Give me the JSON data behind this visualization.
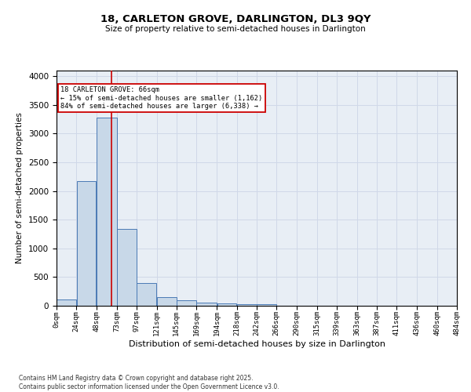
{
  "title_line1": "18, CARLETON GROVE, DARLINGTON, DL3 9QY",
  "title_line2": "Size of property relative to semi-detached houses in Darlington",
  "xlabel": "Distribution of semi-detached houses by size in Darlington",
  "ylabel": "Number of semi-detached properties",
  "bin_labels": [
    "0sqm",
    "24sqm",
    "48sqm",
    "73sqm",
    "97sqm",
    "121sqm",
    "145sqm",
    "169sqm",
    "194sqm",
    "218sqm",
    "242sqm",
    "266sqm",
    "290sqm",
    "315sqm",
    "339sqm",
    "363sqm",
    "387sqm",
    "411sqm",
    "436sqm",
    "460sqm",
    "484sqm"
  ],
  "bin_edges": [
    0,
    24,
    48,
    73,
    97,
    121,
    145,
    169,
    194,
    218,
    242,
    266,
    290,
    315,
    339,
    363,
    387,
    411,
    436,
    460,
    484
  ],
  "bar_heights": [
    110,
    2175,
    3280,
    1340,
    400,
    155,
    90,
    50,
    45,
    30,
    25,
    0,
    0,
    0,
    0,
    0,
    0,
    0,
    0,
    0
  ],
  "bar_color": "#c8d8e8",
  "bar_edge_color": "#4a7ab5",
  "property_size": 66,
  "property_line_color": "#cc0000",
  "annotation_text_line1": "18 CARLETON GROVE: 66sqm",
  "annotation_text_line2": "← 15% of semi-detached houses are smaller (1,162)",
  "annotation_text_line3": "84% of semi-detached houses are larger (6,338) →",
  "annotation_box_color": "#cc0000",
  "ylim": [
    0,
    4100
  ],
  "yticks": [
    0,
    500,
    1000,
    1500,
    2000,
    2500,
    3000,
    3500,
    4000
  ],
  "grid_color": "#d0d8e8",
  "background_color": "#e8eef5",
  "footer_line1": "Contains HM Land Registry data © Crown copyright and database right 2025.",
  "footer_line2": "Contains public sector information licensed under the Open Government Licence v3.0."
}
